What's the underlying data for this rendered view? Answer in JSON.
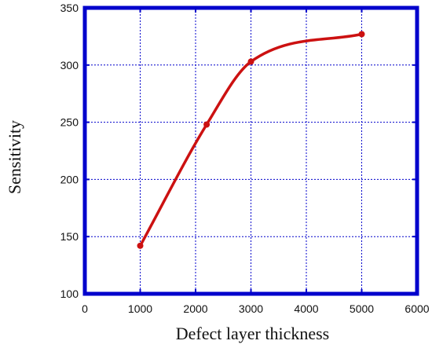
{
  "chart_data": {
    "type": "line",
    "title": "",
    "xlabel": "Defect layer thickness",
    "ylabel": "Sensitivity",
    "xlim": [
      0,
      6000
    ],
    "ylim": [
      100,
      350
    ],
    "x_ticks": [
      0,
      1000,
      2000,
      3000,
      4000,
      5000,
      6000
    ],
    "y_ticks": [
      100,
      150,
      200,
      250,
      300,
      350
    ],
    "x_tick_labels": [
      "0",
      "1000",
      "2000",
      "3000",
      "4000",
      "5000",
      "6000"
    ],
    "y_tick_labels": [
      "100",
      "150",
      "200",
      "250",
      "300",
      "350"
    ],
    "grid": true,
    "grid_style": "dotted",
    "series": [
      {
        "color": "#cc1111",
        "points": [
          {
            "x": 1000,
            "y": 142
          },
          {
            "x": 2200,
            "y": 248
          },
          {
            "x": 3000,
            "y": 303
          },
          {
            "x": 5000,
            "y": 327
          }
        ]
      }
    ],
    "frame_color": "#0000cc",
    "grid_color": "#0000cc"
  }
}
